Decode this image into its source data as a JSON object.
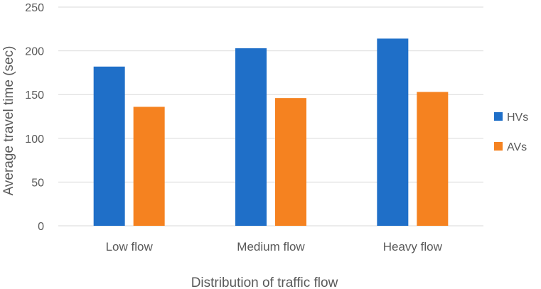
{
  "chart_data": {
    "type": "bar",
    "categories": [
      "Low flow",
      "Medium flow",
      "Heavy flow"
    ],
    "series": [
      {
        "name": "HVs",
        "values": [
          182,
          203,
          214
        ],
        "color": "#1f6fc8"
      },
      {
        "name": "AVs",
        "values": [
          136,
          146,
          153
        ],
        "color": "#f58220"
      }
    ],
    "xlabel": "Distribution of traffic flow",
    "ylabel": "Average travel time (sec)",
    "ylim": [
      0,
      250
    ],
    "yticks": [
      0,
      50,
      100,
      150,
      200,
      250
    ],
    "grid": true,
    "legend_position": "right"
  }
}
